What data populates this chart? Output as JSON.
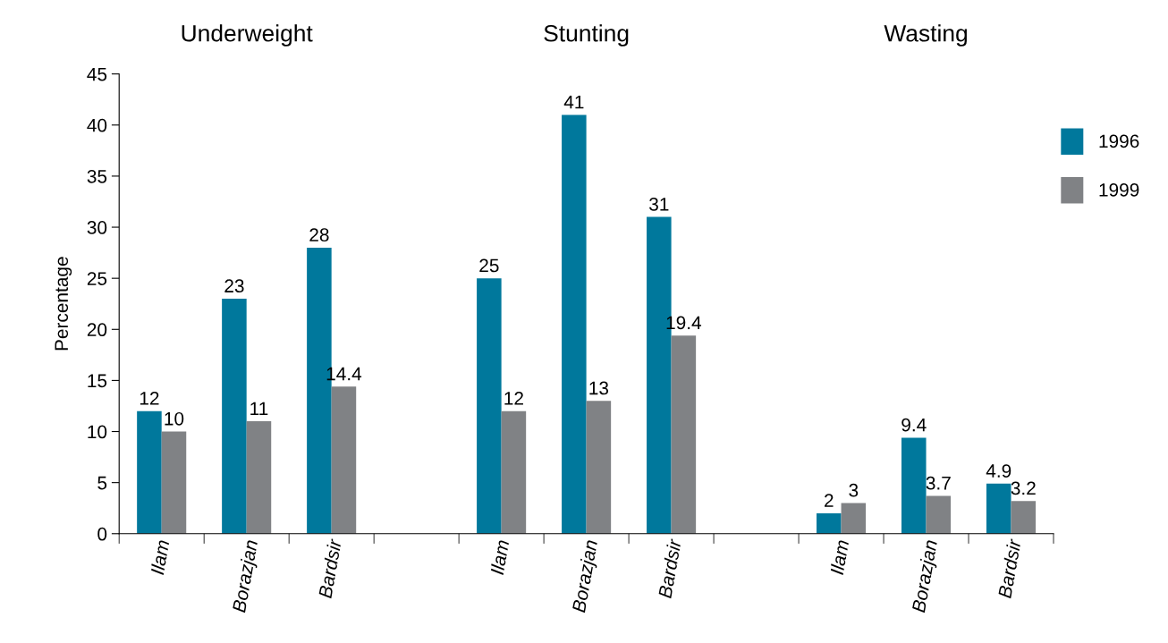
{
  "chart_data": {
    "type": "bar",
    "ylabel": "Percentage",
    "categories": [
      "Ilam",
      "Borazjan",
      "Bardsir",
      null,
      "Ilam",
      "Borazjan",
      "Bardsir",
      null,
      "Ilam",
      "Borazjan",
      "Bardsir"
    ],
    "series": [
      {
        "name": "1996",
        "color": "#00789c",
        "values": [
          12,
          23,
          28,
          null,
          25,
          41,
          31,
          null,
          2,
          9.4,
          4.9
        ]
      },
      {
        "name": "1999",
        "color": "#808285",
        "values": [
          10,
          11,
          14.4,
          null,
          12,
          13,
          19.4,
          null,
          3,
          3.7,
          3.2
        ]
      }
    ],
    "annotations": [
      "Underweight",
      "Stunting",
      "Wasting"
    ],
    "ylim": [
      0,
      45
    ],
    "yticks": [
      0,
      5,
      10,
      15,
      20,
      25,
      30,
      35,
      40,
      45
    ],
    "data_labels": true,
    "grid": false,
    "legend": "right"
  }
}
